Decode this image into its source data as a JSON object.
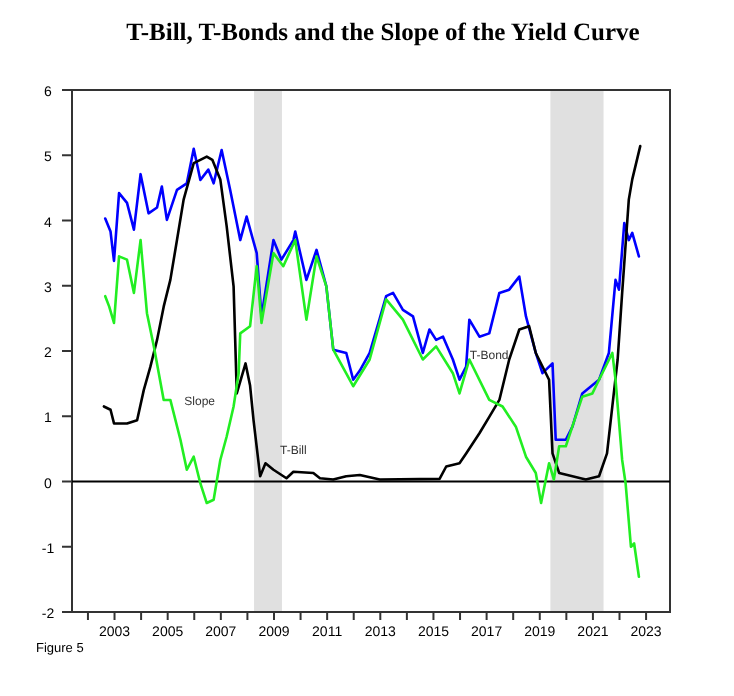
{
  "chart_data": {
    "type": "line",
    "title": "T-Bill, T-Bonds and the Slope of the Yield Curve",
    "annotations": [
      "Figure 5"
    ],
    "xlim": [
      2001.4,
      2023.9
    ],
    "xticks": [
      {
        "value": 2002,
        "label": null
      },
      2003,
      {
        "value": 2004,
        "label": null
      },
      2005,
      {
        "value": 2006,
        "label": null
      },
      2007,
      {
        "value": 2008,
        "label": null
      },
      2009,
      {
        "value": 2010,
        "label": null
      },
      2011,
      {
        "value": 2012,
        "label": null
      },
      2013,
      {
        "value": 2014,
        "label": null
      },
      2015,
      {
        "value": 2016,
        "label": null
      },
      2017,
      {
        "value": 2018,
        "label": null
      },
      2019,
      {
        "value": 2020,
        "label": null
      },
      2021,
      {
        "value": 2022,
        "label": null
      },
      2023
    ],
    "ylim": [
      -2,
      6
    ],
    "yticks": [
      -2,
      -1,
      0,
      1,
      2,
      3,
      4,
      5,
      6
    ],
    "grid": false,
    "ref_lines": [
      {
        "axis": "y",
        "value": 0,
        "color": "#000000"
      }
    ],
    "bands": [
      {
        "axis": "x",
        "from": 2008.25,
        "to": 2009.3,
        "color": "#e0e0e0"
      },
      {
        "axis": "x",
        "from": 2019.4,
        "to": 2021.4,
        "color": "#e0e0e0"
      }
    ],
    "series": [
      {
        "name": "T-Bond",
        "color": "#0000ff",
        "x": [
          2002.65,
          2002.85,
          2002.98,
          2003.17,
          2003.47,
          2003.73,
          2003.98,
          2004.28,
          2004.6,
          2004.78,
          2004.97,
          2005.35,
          2005.72,
          2005.98,
          2006.23,
          2006.53,
          2006.73,
          2007.03,
          2007.35,
          2007.73,
          2007.97,
          2008.35,
          2008.53,
          2008.98,
          2009.28,
          2009.73,
          2009.8,
          2010.22,
          2010.6,
          2010.97,
          2011.23,
          2011.72,
          2011.98,
          2012.23,
          2012.6,
          2012.98,
          2013.22,
          2013.48,
          2013.85,
          2014.23,
          2014.6,
          2014.85,
          2015.1,
          2015.36,
          2015.73,
          2015.98,
          2016.23,
          2016.35,
          2016.73,
          2017.1,
          2017.48,
          2017.85,
          2018.23,
          2018.48,
          2018.85,
          2019.1,
          2019.48,
          2019.6,
          2019.98,
          2020.23,
          2020.6,
          2021.23,
          2021.6,
          2021.85,
          2021.98,
          2022.18,
          2022.35,
          2022.48,
          2022.73
        ],
        "values": [
          4.03,
          3.83,
          3.38,
          4.42,
          4.27,
          3.86,
          4.71,
          4.11,
          4.2,
          4.52,
          4.01,
          4.47,
          4.57,
          5.1,
          4.62,
          4.78,
          4.57,
          5.08,
          4.47,
          3.7,
          4.06,
          3.5,
          2.53,
          3.7,
          3.4,
          3.7,
          3.83,
          3.09,
          3.55,
          2.99,
          2.02,
          1.97,
          1.56,
          1.7,
          1.97,
          2.5,
          2.84,
          2.89,
          2.63,
          2.53,
          1.97,
          2.33,
          2.17,
          2.22,
          1.87,
          1.56,
          1.76,
          2.48,
          2.22,
          2.27,
          2.89,
          2.94,
          3.14,
          2.53,
          1.97,
          1.66,
          1.81,
          0.64,
          0.64,
          0.84,
          1.35,
          1.56,
          1.97,
          3.09,
          2.94,
          3.96,
          3.7,
          3.81,
          3.45
        ]
      },
      {
        "name": "T-Bill",
        "color": "#000000",
        "x": [
          2002.6,
          2002.85,
          2002.98,
          2003.47,
          2003.85,
          2004.1,
          2004.35,
          2004.6,
          2004.85,
          2005.1,
          2005.35,
          2005.6,
          2005.98,
          2006.23,
          2006.47,
          2006.68,
          2006.98,
          2007.22,
          2007.48,
          2007.6,
          2007.93,
          2008.1,
          2008.23,
          2008.48,
          2008.68,
          2008.98,
          2009.47,
          2009.73,
          2010.48,
          2010.73,
          2011.23,
          2011.72,
          2012.23,
          2012.98,
          2015.23,
          2015.48,
          2015.98,
          2016.23,
          2016.73,
          2017.1,
          2017.48,
          2017.85,
          2018.23,
          2018.6,
          2018.85,
          2019.35,
          2019.48,
          2019.73,
          2020.73,
          2021.23,
          2021.53,
          2021.73,
          2021.93,
          2022.1,
          2022.35,
          2022.48,
          2022.78
        ],
        "values": [
          1.15,
          1.1,
          0.89,
          0.89,
          0.94,
          1.4,
          1.76,
          2.17,
          2.68,
          3.09,
          3.7,
          4.32,
          4.88,
          4.93,
          4.98,
          4.93,
          4.63,
          3.91,
          2.99,
          1.35,
          1.81,
          1.47,
          0.94,
          0.08,
          0.28,
          0.18,
          0.05,
          0.15,
          0.13,
          0.05,
          0.03,
          0.08,
          0.1,
          0.03,
          0.04,
          0.23,
          0.28,
          0.43,
          0.74,
          0.99,
          1.25,
          1.87,
          2.33,
          2.38,
          1.97,
          1.56,
          0.43,
          0.13,
          0.03,
          0.08,
          0.43,
          1.15,
          1.87,
          2.89,
          4.32,
          4.63,
          5.14
        ]
      },
      {
        "name": "Slope",
        "color": "#22ee22",
        "x": [
          2002.65,
          2002.8,
          2002.98,
          2003.17,
          2003.47,
          2003.73,
          2003.98,
          2004.22,
          2004.48,
          2004.85,
          2005.1,
          2005.48,
          2005.72,
          2005.98,
          2006.23,
          2006.47,
          2006.73,
          2006.98,
          2007.22,
          2007.48,
          2007.67,
          2007.73,
          2008.1,
          2008.35,
          2008.53,
          2008.98,
          2009.35,
          2009.8,
          2010.22,
          2010.6,
          2010.97,
          2011.23,
          2011.98,
          2012.6,
          2013.22,
          2013.85,
          2014.6,
          2015.1,
          2015.73,
          2015.98,
          2016.35,
          2017.1,
          2017.6,
          2018.1,
          2018.48,
          2018.85,
          2019.05,
          2019.35,
          2019.53,
          2019.73,
          2019.98,
          2020.6,
          2020.98,
          2021.23,
          2021.73,
          2021.85,
          2022.1,
          2022.23,
          2022.43,
          2022.55,
          2022.73
        ],
        "values": [
          2.84,
          2.68,
          2.43,
          3.45,
          3.4,
          2.89,
          3.7,
          2.58,
          2.07,
          1.25,
          1.25,
          0.64,
          0.18,
          0.38,
          -0.03,
          -0.33,
          -0.28,
          0.33,
          0.69,
          1.15,
          1.66,
          2.27,
          2.38,
          3.3,
          2.43,
          3.5,
          3.3,
          3.7,
          2.48,
          3.45,
          2.99,
          2.02,
          1.46,
          1.87,
          2.79,
          2.48,
          1.87,
          2.07,
          1.66,
          1.35,
          1.87,
          1.25,
          1.15,
          0.84,
          0.38,
          0.13,
          -0.33,
          0.28,
          0.03,
          0.54,
          0.54,
          1.3,
          1.35,
          1.56,
          1.97,
          1.56,
          0.33,
          -0.03,
          -1.0,
          -0.95,
          -1.46
        ]
      }
    ]
  }
}
